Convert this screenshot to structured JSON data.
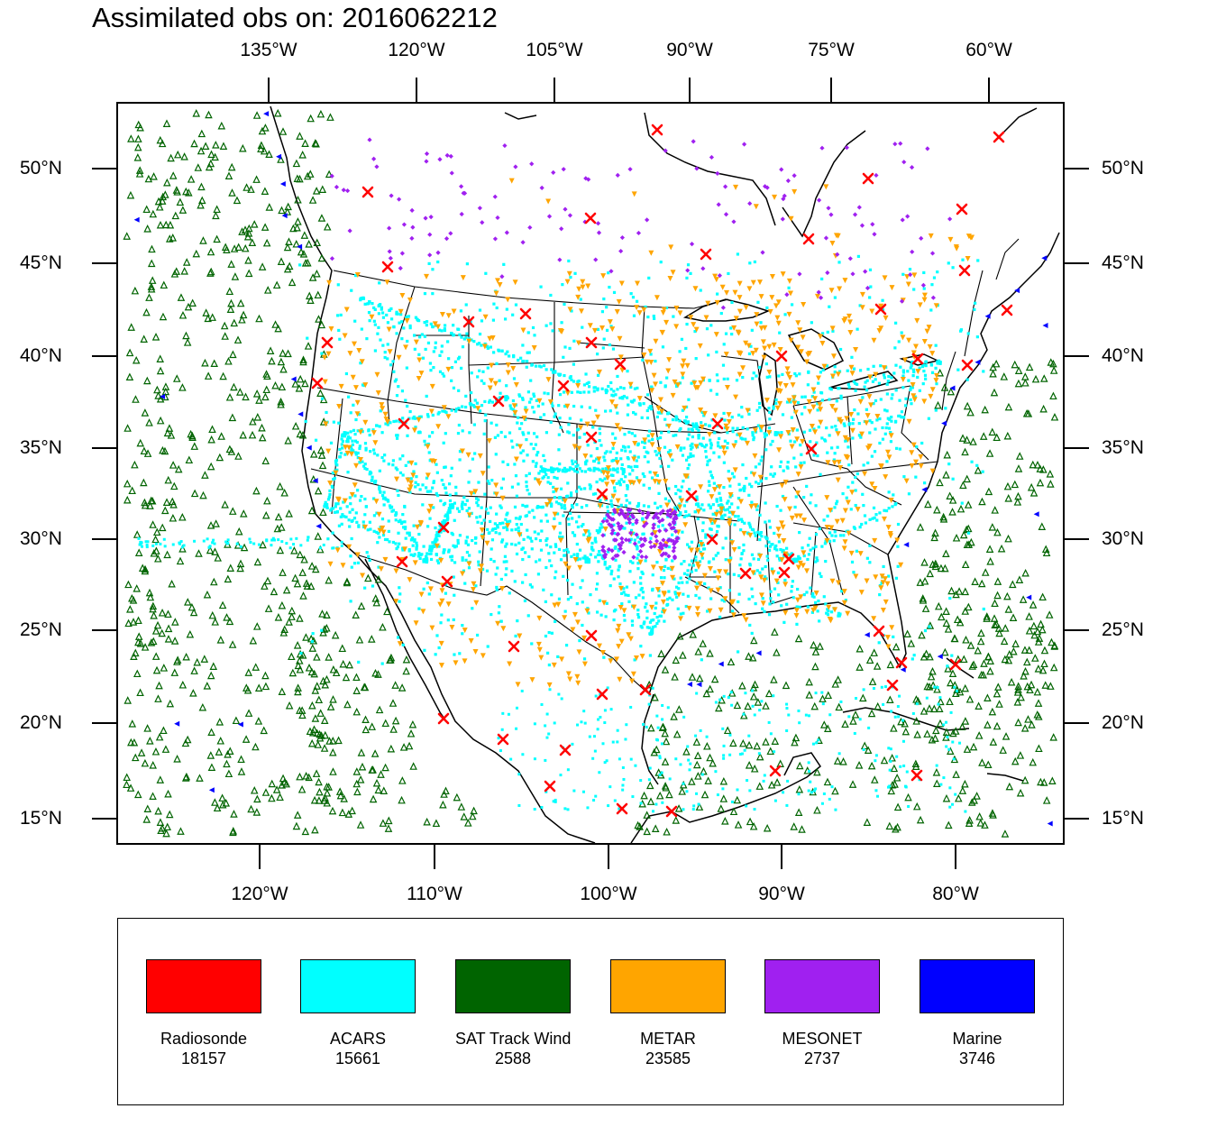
{
  "title": "Assimilated obs on: 2016062212",
  "top_lon_labels": [
    "135°W",
    "120°W",
    "105°W",
    "90°W",
    "75°W",
    "60°W"
  ],
  "bottom_lon_labels": [
    "120°W",
    "110°W",
    "100°W",
    "90°W",
    "80°W"
  ],
  "lat_labels": [
    "50°N",
    "45°N",
    "40°N",
    "35°N",
    "30°N",
    "25°N",
    "20°N",
    "15°N"
  ],
  "colors": {
    "radiosonde": "#ff0000",
    "acars": "#00ffff",
    "sat_track_wind": "#006400",
    "metar": "#ffa500",
    "mesonet": "#a020f0",
    "marine": "#0000ff",
    "radiosonde_outline": "#cc0000"
  },
  "legend": [
    {
      "name": "Radiosonde",
      "count": "18157",
      "color": "#ff0000"
    },
    {
      "name": "ACARS",
      "count": "15661",
      "color": "#00ffff"
    },
    {
      "name": "SAT Track Wind",
      "count": "2588",
      "color": "#006400"
    },
    {
      "name": "METAR",
      "count": "23585",
      "color": "#ffa500"
    },
    {
      "name": "MESONET",
      "count": "2737",
      "color": "#a020f0"
    },
    {
      "name": "Marine",
      "count": "3746",
      "color": "#0000ff"
    }
  ]
}
